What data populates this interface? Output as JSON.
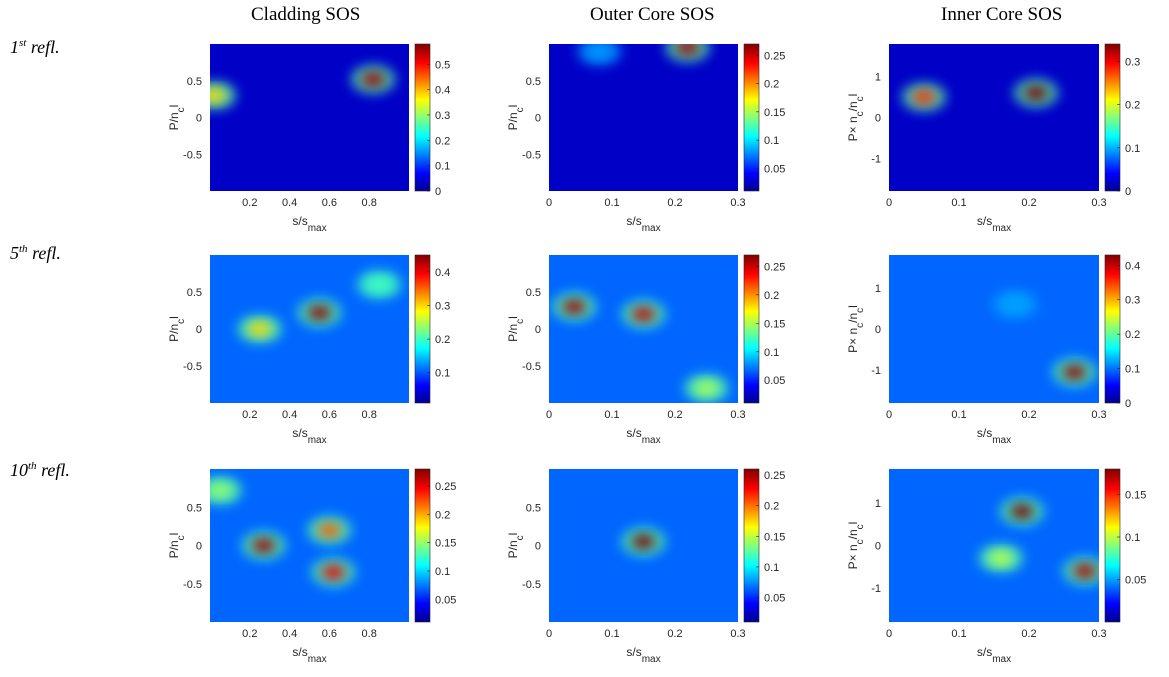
{
  "columns": [
    "Cladding SOS",
    "Outer Core SOS",
    "Inner Core SOS"
  ],
  "rows": [
    {
      "number": "1",
      "suffix": "st",
      "text": "refl."
    },
    {
      "number": "5",
      "suffix": "th",
      "text": "refl."
    },
    {
      "number": "10",
      "suffix": "th",
      "text": "refl."
    }
  ],
  "colormap": "jet",
  "colormap_stops": [
    "#00008f",
    "#0000ff",
    "#00ffff",
    "#ffff00",
    "#ff0000",
    "#800000"
  ],
  "chart_data": [
    {
      "type": "heatmap",
      "row": 0,
      "col": 0,
      "xlabel": "s/s_max",
      "ylabel": "P/n_cl",
      "xlim": [
        0,
        1
      ],
      "ylim": [
        -1,
        1
      ],
      "xticks": [
        "0.2",
        "0.4",
        "0.6",
        "0.8"
      ],
      "yticks": [
        "0.5",
        "0",
        "-0.5"
      ],
      "clim": [
        0,
        0.58
      ],
      "cticks": [
        "0.5",
        "0.4",
        "0.3",
        "0.2",
        "0.1",
        "0"
      ],
      "hotspots": [
        {
          "x": 0.82,
          "y": 0.52,
          "value": 0.56
        },
        {
          "x": 0.02,
          "y": 0.3,
          "value": 0.38
        }
      ]
    },
    {
      "type": "heatmap",
      "row": 0,
      "col": 1,
      "xlabel": "s/s_max",
      "ylabel": "P/n_cl",
      "xlim": [
        0,
        0.3
      ],
      "ylim": [
        -1,
        1
      ],
      "xticks": [
        "0",
        "0.1",
        "0.2",
        "0.3"
      ],
      "yticks": [
        "0.5",
        "0",
        "-0.5"
      ],
      "clim": [
        0.01,
        0.27
      ],
      "cticks": [
        "0.25",
        "0.2",
        "0.15",
        "0.1",
        "0.05"
      ],
      "hotspots": [
        {
          "x": 0.22,
          "y": 0.95,
          "value": 0.26
        },
        {
          "x": 0.08,
          "y": 0.9,
          "value": 0.08
        }
      ]
    },
    {
      "type": "heatmap",
      "row": 0,
      "col": 2,
      "xlabel": "s/s_max",
      "ylabel": "P× n_c/n_cl",
      "xlim": [
        0,
        0.3
      ],
      "ylim": [
        -1.8,
        1.8
      ],
      "xticks": [
        "0",
        "0.1",
        "0.2",
        "0.3"
      ],
      "yticks": [
        "1",
        "0",
        "-1"
      ],
      "clim": [
        0,
        0.34
      ],
      "cticks": [
        "0.3",
        "0.2",
        "0.1",
        "0"
      ],
      "hotspots": [
        {
          "x": 0.05,
          "y": 0.5,
          "value": 0.28
        },
        {
          "x": 0.21,
          "y": 0.6,
          "value": 0.34
        }
      ]
    },
    {
      "type": "heatmap",
      "row": 1,
      "col": 0,
      "xlabel": "s/s_max",
      "ylabel": "P/n_cl",
      "xlim": [
        0,
        1
      ],
      "ylim": [
        -1,
        1
      ],
      "xticks": [
        "0.2",
        "0.4",
        "0.6",
        "0.8"
      ],
      "yticks": [
        "0.5",
        "0",
        "-0.5"
      ],
      "clim": [
        0.01,
        0.45
      ],
      "cticks": [
        "0.4",
        "0.3",
        "0.2",
        "0.1"
      ],
      "hotspots": [
        {
          "x": 0.55,
          "y": 0.22,
          "value": 0.44
        },
        {
          "x": 0.25,
          "y": 0.0,
          "value": 0.3
        },
        {
          "x": 0.85,
          "y": 0.6,
          "value": 0.2
        }
      ]
    },
    {
      "type": "heatmap",
      "row": 1,
      "col": 1,
      "xlabel": "s/s_max",
      "ylabel": "P/n_cl",
      "xlim": [
        0,
        0.3
      ],
      "ylim": [
        -1,
        1
      ],
      "xticks": [
        "0",
        "0.1",
        "0.2",
        "0.3"
      ],
      "yticks": [
        "0.5",
        "0",
        "-0.5"
      ],
      "clim": [
        0.01,
        0.27
      ],
      "cticks": [
        "0.25",
        "0.2",
        "0.15",
        "0.1",
        "0.05"
      ],
      "hotspots": [
        {
          "x": 0.04,
          "y": 0.3,
          "value": 0.26
        },
        {
          "x": 0.15,
          "y": 0.2,
          "value": 0.25
        },
        {
          "x": 0.25,
          "y": -0.8,
          "value": 0.15
        }
      ]
    },
    {
      "type": "heatmap",
      "row": 1,
      "col": 2,
      "xlabel": "s/s_max",
      "ylabel": "P× n_c/n_cl",
      "xlim": [
        0,
        0.3
      ],
      "ylim": [
        -1.8,
        1.8
      ],
      "xticks": [
        "0",
        "0.1",
        "0.2",
        "0.3"
      ],
      "yticks": [
        "1",
        "0",
        "-1"
      ],
      "clim": [
        0,
        0.43
      ],
      "cticks": [
        "0.4",
        "0.3",
        "0.2",
        "0.1",
        "0"
      ],
      "hotspots": [
        {
          "x": 0.265,
          "y": -1.05,
          "value": 0.42
        },
        {
          "x": 0.18,
          "y": 0.6,
          "value": 0.12
        }
      ]
    },
    {
      "type": "heatmap",
      "row": 2,
      "col": 0,
      "xlabel": "s/s_max",
      "ylabel": "P/n_cl",
      "xlim": [
        0,
        1
      ],
      "ylim": [
        -1,
        1
      ],
      "xticks": [
        "0.2",
        "0.4",
        "0.6",
        "0.8"
      ],
      "yticks": [
        "0.5",
        "0",
        "-0.5"
      ],
      "clim": [
        0.01,
        0.28
      ],
      "cticks": [
        "0.25",
        "0.2",
        "0.15",
        "0.1",
        "0.05"
      ],
      "hotspots": [
        {
          "x": 0.27,
          "y": 0.0,
          "value": 0.27
        },
        {
          "x": 0.62,
          "y": -0.35,
          "value": 0.25
        },
        {
          "x": 0.6,
          "y": 0.2,
          "value": 0.22
        },
        {
          "x": 0.05,
          "y": 0.72,
          "value": 0.15
        }
      ]
    },
    {
      "type": "heatmap",
      "row": 2,
      "col": 1,
      "xlabel": "s/s_max",
      "ylabel": "P/n_cl",
      "xlim": [
        0,
        0.3
      ],
      "ylim": [
        -1,
        1
      ],
      "xticks": [
        "0",
        "0.1",
        "0.2",
        "0.3"
      ],
      "yticks": [
        "0.5",
        "0",
        "-0.5"
      ],
      "clim": [
        0.01,
        0.26
      ],
      "cticks": [
        "0.25",
        "0.2",
        "0.15",
        "0.1",
        "0.05"
      ],
      "hotspots": [
        {
          "x": 0.15,
          "y": 0.05,
          "value": 0.26
        }
      ]
    },
    {
      "type": "heatmap",
      "row": 2,
      "col": 2,
      "xlabel": "s/s_max",
      "ylabel": "P× n_c/n_cl",
      "xlim": [
        0,
        0.3
      ],
      "ylim": [
        -1.8,
        1.8
      ],
      "xticks": [
        "0",
        "0.1",
        "0.2",
        "0.3"
      ],
      "yticks": [
        "1",
        "0",
        "-1"
      ],
      "clim": [
        0,
        0.18
      ],
      "cticks": [
        "0.15",
        "0.1",
        "0.05"
      ],
      "hotspots": [
        {
          "x": 0.19,
          "y": 0.8,
          "value": 0.18
        },
        {
          "x": 0.28,
          "y": -0.6,
          "value": 0.17
        },
        {
          "x": 0.16,
          "y": -0.3,
          "value": 0.1
        }
      ]
    }
  ]
}
